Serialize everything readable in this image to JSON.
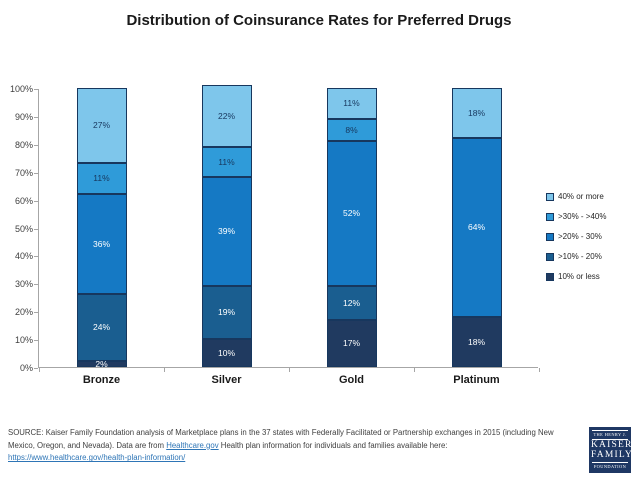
{
  "title": "Distribution of Coinsurance Rates for Preferred Drugs",
  "chart_data": {
    "type": "bar",
    "stacked": true,
    "title": "Distribution of Coinsurance Rates for Preferred Drugs",
    "categories": [
      "Bronze",
      "Silver",
      "Gold",
      "Platinum"
    ],
    "series": [
      {
        "name": "10% or less",
        "color": "#203A60",
        "label_color": "#FFFFFF",
        "values": [
          2,
          10,
          17,
          18
        ]
      },
      {
        "name": ">10% - 20%",
        "color": "#1A5E90",
        "label_color": "#FFFFFF",
        "values": [
          24,
          19,
          12,
          0
        ]
      },
      {
        "name": ">20% - 30%",
        "color": "#1579C4",
        "label_color": "#FFFFFF",
        "values": [
          36,
          39,
          52,
          64
        ]
      },
      {
        "name": ">30% - >40%",
        "color": "#2F9BD9",
        "label_color": "#17375E",
        "values": [
          11,
          11,
          8,
          0
        ]
      },
      {
        "name": "40% or more",
        "color": "#7EC6EB",
        "label_color": "#17375E",
        "values": [
          27,
          22,
          11,
          18
        ]
      }
    ],
    "y_ticks": [
      "0%",
      "10%",
      "20%",
      "30%",
      "40%",
      "50%",
      "60%",
      "70%",
      "80%",
      "90%",
      "100%"
    ],
    "ylim": [
      0,
      100
    ],
    "grid": false,
    "legend_position": "right",
    "legend_order": "top-is-last-series",
    "value_suffix": "%"
  },
  "footer": {
    "text_before_link1": "SOURCE: Kaiser Family Foundation analysis of Marketplace plans in the 37 states with Federally Facilitated or Partnership exchanges in 2015 (including New Mexico, Oregon, and Nevada). Data are from ",
    "link1": "Healthcare.gov",
    "text_after_link1": " Health plan information for individuals and families available here:",
    "link2": "https://www.healthcare.gov/health-plan-information/"
  },
  "logo": {
    "line1": "THE HENRY J.",
    "line2": "KAISER",
    "line3": "FAMILY",
    "line4": "FOUNDATION"
  },
  "colors": {
    "segment_border": "#17375E",
    "axis": "#A6A6A6",
    "link": "#2E75B6",
    "logo_bg": "#1F3864"
  }
}
